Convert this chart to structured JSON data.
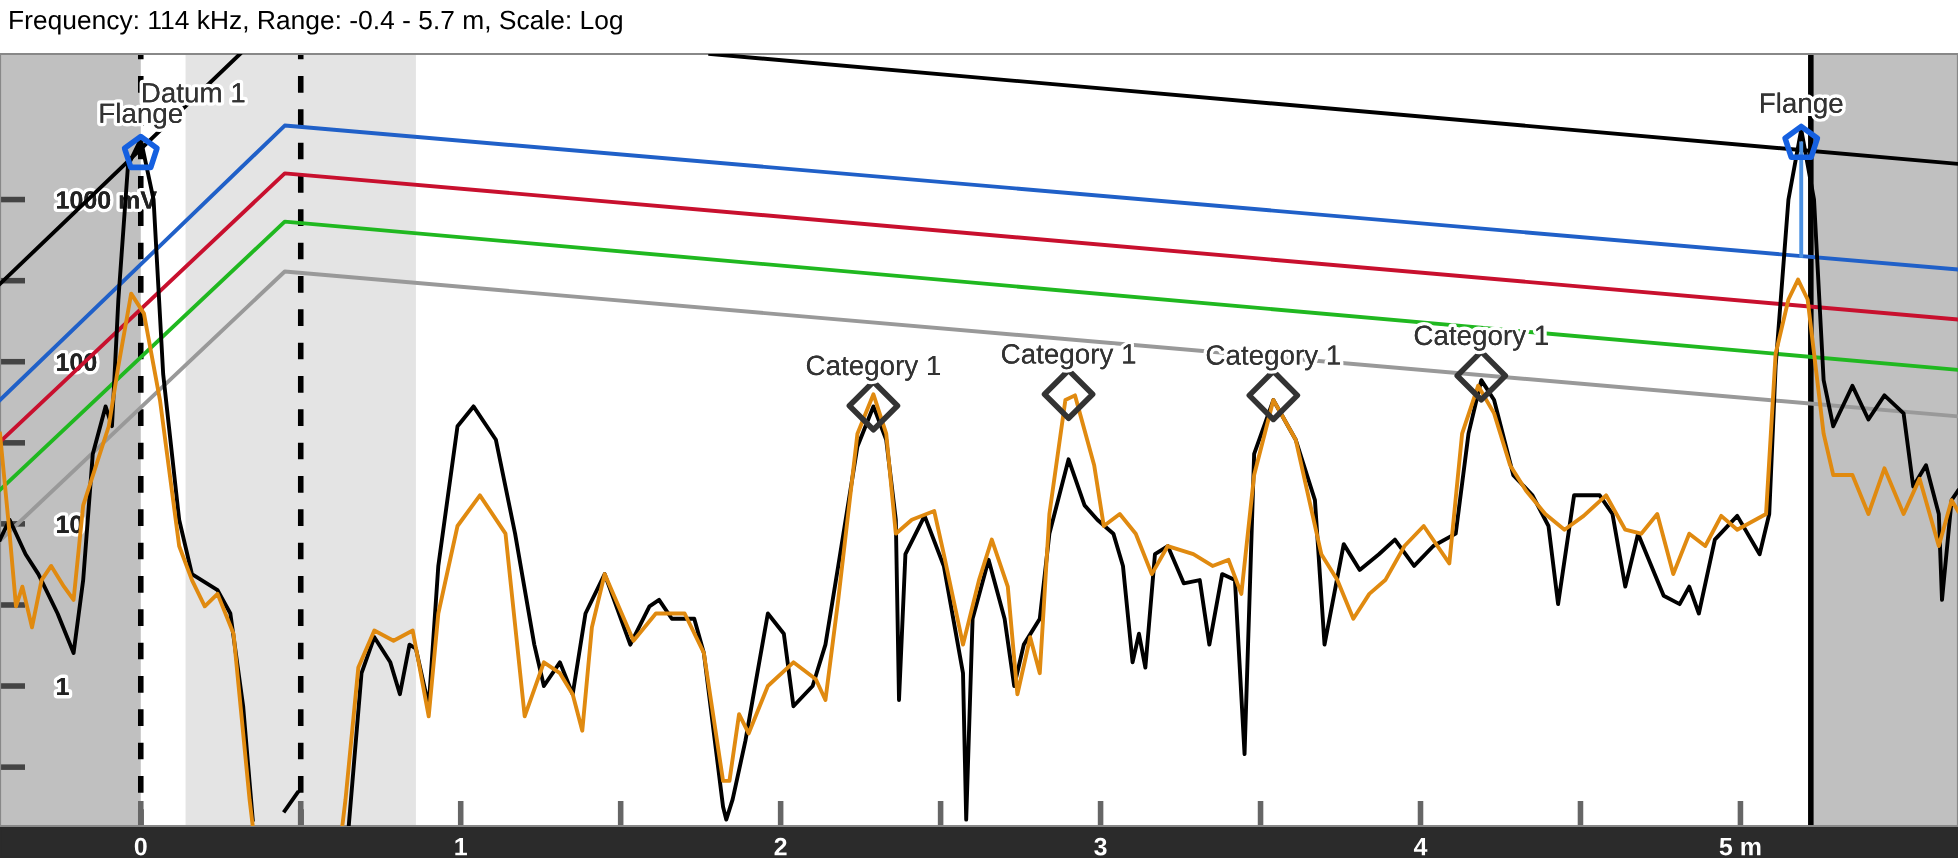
{
  "chart_data": {
    "type": "line",
    "title": "Frequency: 114 kHz, Range: -0.4 - 5.7 m, Scale: Log",
    "log": "y",
    "grid": false,
    "legend": false,
    "xlim": [
      -0.44,
      5.68
    ],
    "ylim": [
      0.137,
      7900
    ],
    "xticks": [
      0,
      {
        "value": 0.5,
        "label": null
      },
      1,
      {
        "value": 1.5,
        "label": null
      },
      2,
      {
        "value": 2.5,
        "label": null
      },
      3,
      {
        "value": 3.5,
        "label": null
      },
      4,
      {
        "value": 4.5,
        "label": null
      },
      {
        "value": 5,
        "label": "5 m"
      }
    ],
    "yticks": [
      {
        "value": 1000,
        "label": "1000 mV"
      },
      {
        "value": 316,
        "label": null
      },
      {
        "value": 100,
        "label": "100"
      },
      {
        "value": 31.6,
        "label": null
      },
      {
        "value": 10,
        "label": "10"
      },
      {
        "value": 3.16,
        "label": null
      },
      {
        "value": 1,
        "label": "1"
      },
      {
        "value": 0.316,
        "label": null
      }
    ],
    "bands": [
      {
        "axis": "x",
        "from": -0.44,
        "to": 0,
        "color": "#c0c0c0"
      },
      {
        "axis": "x",
        "from": 0.14,
        "to": 0.86,
        "color": "#e4e4e4"
      },
      {
        "axis": "x",
        "from": 5.22,
        "to": 5.68,
        "color": "#c0c0c0"
      }
    ],
    "ref_lines": [
      {
        "axis": "x",
        "value": 0,
        "label": "Datum 1",
        "color": "#000000",
        "line_style": "dashed"
      },
      {
        "axis": "x",
        "value": 0.5,
        "color": "#000000",
        "line_style": "dashed"
      },
      {
        "axis": "x",
        "value": 5.22,
        "color": "#000000",
        "line_style": "solid"
      }
    ],
    "series": [
      {
        "color": "#000000",
        "x": [
          -0.44,
          0.31,
          1.0,
          1.78,
          5.68
        ],
        "values": [
          302,
          7900,
          null,
          7900,
          1660
        ]
      },
      {
        "color": "#2060c8",
        "x": [
          -0.44,
          0.45,
          5.68
        ],
        "values": [
          58,
          2860,
          370
        ]
      },
      {
        "color": "#c8102e",
        "x": [
          -0.44,
          0.45,
          5.68
        ],
        "values": [
          32,
          1450,
          182
        ]
      },
      {
        "color": "#20b820",
        "x": [
          -0.44,
          0.45,
          5.68
        ],
        "values": [
          16.2,
          731,
          89
        ]
      },
      {
        "color": "#999999",
        "x": [
          -0.44,
          0.45,
          5.68
        ],
        "values": [
          7.9,
          360,
          46
        ]
      },
      {
        "color": "#000000",
        "x": [
          -0.44,
          -0.41,
          -0.36,
          -0.32,
          -0.26,
          -0.21,
          -0.18,
          -0.15,
          -0.11,
          -0.09,
          -0.07,
          -0.04,
          0.0,
          0.04,
          0.07,
          0.12,
          0.16,
          0.24,
          0.28,
          0.32,
          0.35,
          0.38,
          0.45,
          0.49,
          0.55,
          0.65,
          0.69,
          0.73,
          0.78,
          0.81,
          0.84,
          0.86,
          0.9,
          0.93,
          0.99,
          1.04,
          1.11,
          1.17,
          1.23,
          1.26,
          1.31,
          1.35,
          1.39,
          1.45,
          1.53,
          1.59,
          1.62,
          1.66,
          1.73,
          1.76,
          1.82,
          1.83,
          1.85,
          1.89,
          1.96,
          2.01,
          2.04,
          2.1,
          2.14,
          2.18,
          2.24,
          2.29,
          2.33,
          2.36,
          2.37,
          2.39,
          2.45,
          2.51,
          2.57,
          2.58,
          2.6,
          2.65,
          2.7,
          2.73,
          2.76,
          2.81,
          2.84,
          2.9,
          2.95,
          2.99,
          3.04,
          3.07,
          3.1,
          3.12,
          3.14,
          3.17,
          3.21,
          3.26,
          3.31,
          3.34,
          3.38,
          3.42,
          3.45,
          3.48,
          3.54,
          3.61,
          3.67,
          3.7,
          3.76,
          3.81,
          3.87,
          3.92,
          3.98,
          4.04,
          4.11,
          4.15,
          4.19,
          4.23,
          4.29,
          4.35,
          4.4,
          4.43,
          4.48,
          4.56,
          4.6,
          4.64,
          4.68,
          4.76,
          4.81,
          4.84,
          4.87,
          4.92,
          4.99,
          5.06,
          5.09,
          5.11,
          5.15,
          5.19,
          5.23,
          5.26,
          5.29,
          5.35,
          5.4,
          5.45,
          5.51,
          5.54,
          5.58,
          5.62,
          5.63,
          5.66,
          5.68
        ],
        "values": [
          8.0,
          10.6,
          6.5,
          4.9,
          2.8,
          1.6,
          4.5,
          27,
          53,
          40,
          242,
          1620,
          2350,
          1000,
          84,
          10.6,
          4.9,
          3.9,
          2.8,
          0.75,
          0.15,
          null,
          0.17,
          0.22,
          null,
          0.137,
          1.2,
          2.0,
          1.4,
          0.89,
          1.8,
          1.7,
          0.75,
          5.5,
          40,
          53,
          33,
          8.7,
          1.8,
          1.0,
          1.4,
          0.89,
          2.8,
          4.9,
          1.8,
          3.1,
          3.4,
          2.6,
          2.6,
          1.6,
          0.18,
          0.15,
          0.2,
          0.46,
          2.8,
          2.1,
          0.75,
          1.0,
          1.8,
          5.5,
          30,
          53,
          33,
          10.6,
          0.82,
          6.5,
          11.2,
          5.5,
          1.2,
          0.15,
          2.6,
          6.0,
          2.6,
          1.0,
          1.8,
          2.6,
          8.7,
          25,
          13,
          10.6,
          8.7,
          5.5,
          1.4,
          2.1,
          1.3,
          6.5,
          7.3,
          4.3,
          4.5,
          1.8,
          4.9,
          4.5,
          0.38,
          27,
          58,
          33,
          14,
          1.8,
          7.5,
          5.2,
          6.5,
          8.0,
          5.5,
          7.3,
          8.7,
          36,
          77,
          58,
          20,
          15,
          9.7,
          3.2,
          15,
          15,
          11.5,
          4.1,
          8.7,
          3.6,
          3.2,
          4.1,
          2.8,
          8.0,
          11.2,
          6.5,
          11.5,
          94,
          1000,
          2700,
          1000,
          77,
          40,
          71,
          44,
          62,
          48,
          17,
          23,
          11.5,
          3.4,
          14,
          16
        ]
      },
      {
        "color": "#e08a10",
        "x": [
          -0.44,
          -0.41,
          -0.39,
          -0.37,
          -0.34,
          -0.31,
          -0.28,
          -0.24,
          -0.21,
          -0.18,
          -0.1,
          -0.07,
          -0.03,
          0.01,
          0.06,
          0.12,
          0.16,
          0.2,
          0.24,
          0.29,
          0.34,
          0.35,
          0.5,
          0.63,
          0.64,
          0.68,
          0.73,
          0.79,
          0.85,
          0.9,
          0.93,
          0.99,
          1.06,
          1.14,
          1.2,
          1.26,
          1.31,
          1.35,
          1.38,
          1.41,
          1.45,
          1.54,
          1.61,
          1.7,
          1.76,
          1.82,
          1.84,
          1.87,
          1.9,
          1.96,
          2.04,
          2.11,
          2.14,
          2.18,
          2.24,
          2.29,
          2.33,
          2.36,
          2.41,
          2.48,
          2.51,
          2.57,
          2.62,
          2.66,
          2.71,
          2.74,
          2.78,
          2.81,
          2.84,
          2.89,
          2.92,
          2.98,
          3.01,
          3.06,
          3.11,
          3.16,
          3.21,
          3.29,
          3.35,
          3.4,
          3.44,
          3.48,
          3.54,
          3.61,
          3.69,
          3.74,
          3.79,
          3.84,
          3.89,
          3.95,
          4.01,
          4.09,
          4.13,
          4.18,
          4.23,
          4.28,
          4.33,
          4.39,
          4.45,
          4.51,
          4.58,
          4.64,
          4.69,
          4.74,
          4.79,
          4.84,
          4.89,
          4.94,
          4.99,
          5.08,
          5.11,
          5.15,
          5.18,
          5.21,
          5.26,
          5.29,
          5.35,
          5.4,
          5.45,
          5.51,
          5.56,
          5.62,
          5.66,
          5.68
        ],
        "values": [
          36,
          8.7,
          3.1,
          4.1,
          2.3,
          4.5,
          5.5,
          4.1,
          3.4,
          13,
          40,
          94,
          263,
          198,
          58,
          7.3,
          4.5,
          3.1,
          3.7,
          2.1,
          0.2,
          0.137,
          null,
          0.137,
          0.2,
          1.3,
          2.2,
          1.9,
          2.2,
          0.65,
          2.8,
          9.7,
          15,
          8.7,
          0.65,
          1.4,
          1.2,
          0.89,
          0.53,
          2.3,
          4.9,
          1.9,
          2.8,
          2.8,
          1.6,
          0.26,
          0.26,
          0.67,
          0.51,
          1.0,
          1.4,
          1.1,
          0.82,
          3.4,
          36,
          63,
          36,
          8.7,
          10.6,
          12,
          6.5,
          1.8,
          4.5,
          8.0,
          4.1,
          0.89,
          2.0,
          1.2,
          11.5,
          58,
          62,
          23,
          9.7,
          11.5,
          8.7,
          4.9,
          7.3,
          6.5,
          5.5,
          6.0,
          3.7,
          20,
          58,
          33,
          6.5,
          4.5,
          2.6,
          3.7,
          4.5,
          7.3,
          9.7,
          5.7,
          36,
          71,
          48,
          23,
          16,
          11.5,
          9.2,
          11.2,
          15,
          9.2,
          8.7,
          11.5,
          4.9,
          8.7,
          7.3,
          11.2,
          9.2,
          11.5,
          112,
          242,
          321,
          242,
          36,
          20,
          20,
          11.5,
          22,
          11.5,
          19,
          7.3,
          14,
          12
        ]
      },
      {
        "color": "#4a90e2",
        "x": [
          5.19,
          5.19
        ],
        "values": [
          2220,
          450
        ]
      },
      {
        "type": "scatter",
        "marker": "diamond",
        "color": "#333333",
        "x": [
          2.29,
          2.9,
          3.54,
          4.19
        ],
        "values": [
          53.5,
          63,
          62,
          82
        ],
        "value_labels": [
          "Category 1",
          "Category 1",
          "Category 1",
          "Category 1"
        ]
      },
      {
        "type": "scatter",
        "color": "#1560e0",
        "x": [
          0,
          5.19
        ],
        "values": [
          1920,
          2220
        ],
        "value_labels": [
          "Flange",
          "Flange"
        ]
      }
    ]
  }
}
